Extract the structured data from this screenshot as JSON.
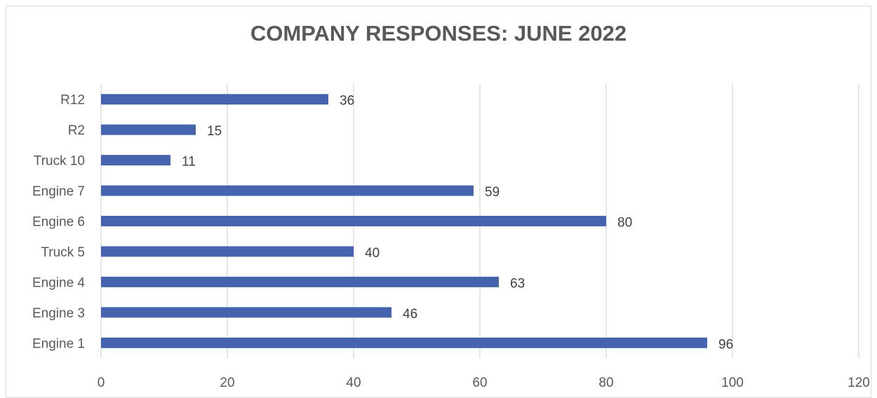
{
  "chart_data": {
    "type": "bar",
    "orientation": "horizontal",
    "title": "COMPANY RESPONSES: JUNE 2022",
    "xlabel": "",
    "ylabel": "",
    "categories": [
      "Engine 1",
      "Engine 3",
      "Engine 4",
      "Truck 5",
      "Engine 6",
      "Engine 7",
      "Truck 10",
      "R2",
      "R12"
    ],
    "values": [
      96,
      46,
      63,
      40,
      80,
      59,
      11,
      15,
      36
    ],
    "xlim": [
      0,
      120
    ],
    "x_ticks": [
      0,
      20,
      40,
      60,
      80,
      100,
      120
    ],
    "grid": true,
    "legend": "none",
    "data_labels": true,
    "bar_color": "#4664ad",
    "grid_color": "#d9d9d9"
  }
}
